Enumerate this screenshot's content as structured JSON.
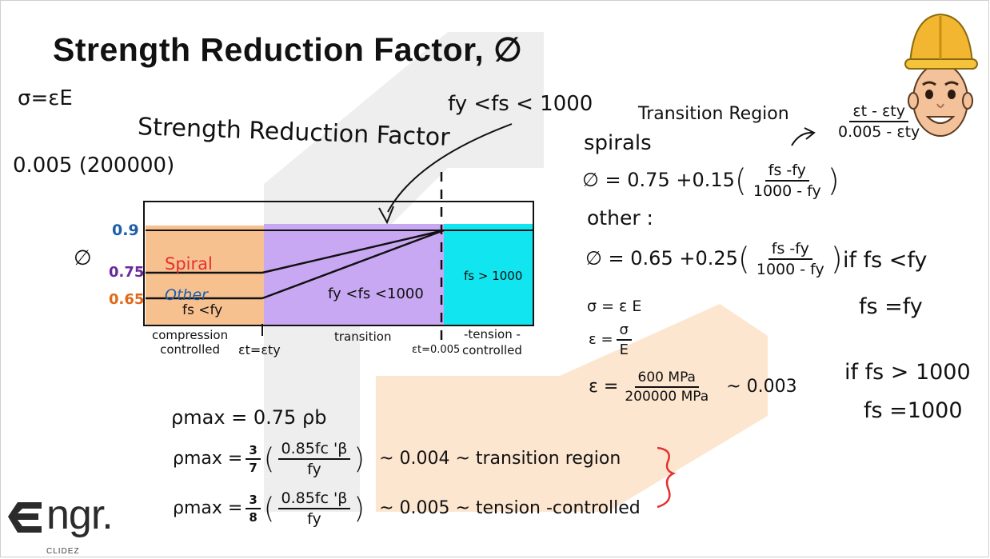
{
  "slide": {
    "title": "Strength Reduction Factor, ∅",
    "logo_text": "ngr.",
    "logo_sub": "CLIDEZ",
    "avatar_name": "engineer-avatar"
  },
  "notes_left": {
    "sigma_eq": "σ=εE",
    "strain_calc": "0.005 (200000)"
  },
  "diagram": {
    "heading": "Strength Reduction Factor",
    "callout": "fy <fs < 1000",
    "phi_axis": "∅",
    "ticks": [
      {
        "label": "0.9",
        "color": "#1f5fa8"
      },
      {
        "label": "0.75",
        "color": "#6a2a9a"
      },
      {
        "label": "0.65",
        "color": "#e06a1a"
      }
    ],
    "curve_labels": {
      "spiral": "Spiral",
      "other": "Other"
    },
    "region_labels": {
      "compression_cond": "fs <fy",
      "transition_cond": "fy <fs <1000",
      "tension_cond": "fs > 1000"
    },
    "bottom_labels": {
      "compression": [
        "compression",
        "controlled"
      ],
      "et_ety": "εt=εty",
      "transition": "transition",
      "et_0005": "εt=0.005",
      "tension": [
        "-tension -",
        "controlled"
      ]
    },
    "colors": {
      "compression": "#f7c08f",
      "transition": "#c8a8f2",
      "tension": "#11e5ef"
    }
  },
  "notes_right": {
    "transition_region": "Transition Region",
    "ratio_num": "εt - εty",
    "ratio_den": "0.005 - εty",
    "spirals": "spirals",
    "spiral_eq_lhs": "∅ = 0.75 +0.15",
    "spiral_num": "fs -fy",
    "spiral_den": "1000 - fy",
    "other": "other :",
    "other_eq_lhs": "∅ = 0.65 +0.25",
    "other_num": "fs -fy",
    "other_den": "1000 - fy",
    "sigma": "σ = ε E",
    "eps_lhs": "ε =",
    "eps_num": "σ",
    "eps_den": "E",
    "eps2_lhs": "ε =",
    "eps2_num": "600 MPa",
    "eps2_den": "200000 MPa",
    "eps2_result": "~ 0.003",
    "if1": "if fs <fy",
    "if1_res": "fs =fy",
    "if2": "if fs > 1000",
    "if2_res": "fs =1000"
  },
  "notes_bottom": {
    "rho1": "ρmax = 0.75 ρb",
    "rho2_lhs": "ρmax =",
    "rho2_coef_num": "3",
    "rho2_coef_den": "7",
    "rho_num": "0.85fc 'β",
    "rho_den": "fy",
    "rho2_res": "~ 0.004 ~ transition region",
    "rho3_lhs": "ρmax =",
    "rho3_coef_num": "3",
    "rho3_coef_den": "8",
    "rho3_res": "~ 0.005 ~ tension -controlled"
  }
}
